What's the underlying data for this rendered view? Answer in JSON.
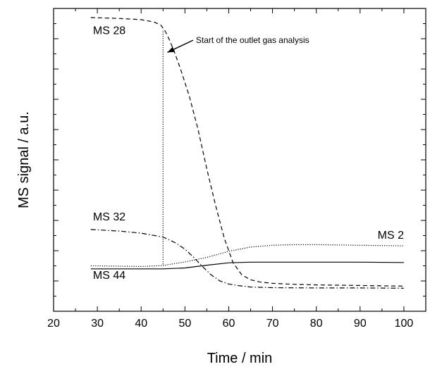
{
  "chart_data": {
    "type": "line",
    "title": "",
    "xlabel": "Time / min",
    "ylabel": "MS signal / a.u.",
    "xlim": [
      20,
      105
    ],
    "ylim": [
      0,
      1
    ],
    "xticks": [
      20,
      30,
      40,
      50,
      60,
      70,
      80,
      90,
      100
    ],
    "yticks_labeled": false,
    "grid": false,
    "legend": "none",
    "series": [
      {
        "name": "MS 28",
        "style": "dashed",
        "x": [
          28.5,
          35,
          40,
          43,
          44.5,
          45.5,
          46.5,
          47.5,
          49,
          51,
          53,
          55,
          57,
          59,
          61,
          63,
          65,
          67,
          70,
          75,
          80,
          85,
          90,
          95,
          100
        ],
        "y": [
          0.97,
          0.967,
          0.963,
          0.955,
          0.945,
          0.925,
          0.895,
          0.86,
          0.8,
          0.71,
          0.6,
          0.47,
          0.35,
          0.24,
          0.16,
          0.12,
          0.104,
          0.097,
          0.092,
          0.089,
          0.087,
          0.086,
          0.085,
          0.084,
          0.083
        ]
      },
      {
        "name": "MS 32",
        "style": "dash-dot",
        "x": [
          28.5,
          35,
          40,
          45,
          48,
          50,
          52,
          54,
          56,
          58,
          60,
          62,
          65,
          70,
          80,
          90,
          100
        ],
        "y": [
          0.27,
          0.265,
          0.258,
          0.245,
          0.225,
          0.205,
          0.178,
          0.148,
          0.12,
          0.1,
          0.09,
          0.085,
          0.08,
          0.078,
          0.077,
          0.077,
          0.076
        ]
      },
      {
        "name": "MS 2",
        "style": "dotted",
        "x": [
          28.5,
          40,
          45,
          50,
          55,
          60,
          65,
          70,
          75,
          80,
          90,
          100
        ],
        "y": [
          0.15,
          0.148,
          0.151,
          0.163,
          0.178,
          0.198,
          0.212,
          0.218,
          0.22,
          0.22,
          0.218,
          0.216
        ]
      },
      {
        "name": "MS 44",
        "style": "solid",
        "x": [
          28.5,
          40,
          45,
          50,
          55,
          60,
          65,
          70,
          80,
          90,
          100
        ],
        "y": [
          0.14,
          0.14,
          0.14,
          0.143,
          0.152,
          0.16,
          0.162,
          0.162,
          0.162,
          0.162,
          0.161
        ]
      }
    ],
    "marker_line": {
      "x": 45,
      "y_from": 0.155,
      "y_to": 0.93,
      "style": "dotted"
    },
    "annotations": [
      {
        "text": "Start of the outlet gas analysis",
        "x": 52.5,
        "y": 0.895,
        "arrow_to": [
          46,
          0.855
        ]
      }
    ],
    "series_labels": [
      {
        "text": "MS 28",
        "x": 29,
        "y": 0.915
      },
      {
        "text": "MS 32",
        "x": 29,
        "y": 0.3
      },
      {
        "text": "MS 2",
        "x": 94,
        "y": 0.24
      },
      {
        "text": "MS 44",
        "x": 29,
        "y": 0.107
      }
    ]
  }
}
